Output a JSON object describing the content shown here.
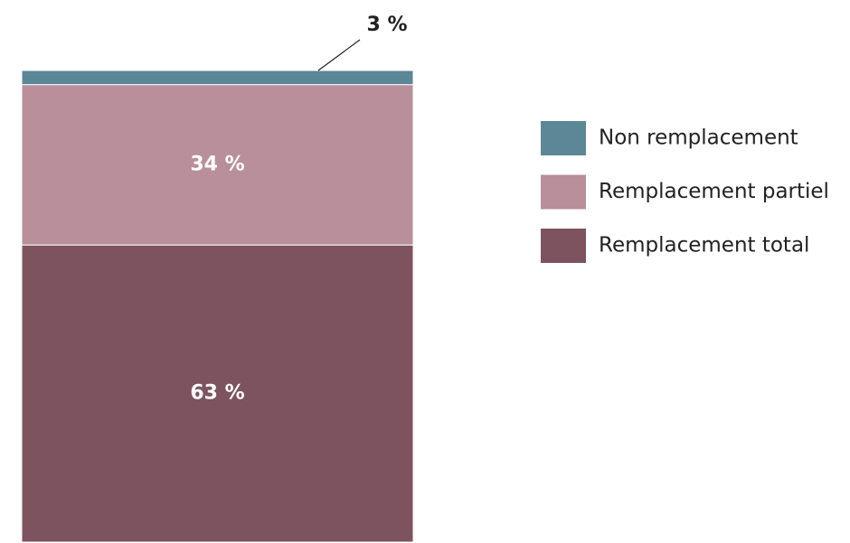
{
  "chart_data": {
    "type": "bar",
    "stacked": true,
    "categories": [
      null
    ],
    "series": [
      {
        "name": "Remplacement total",
        "color": "#7d5360",
        "values": [
          63
        ],
        "value_labels": [
          "63 %"
        ]
      },
      {
        "name": "Remplacement partiel",
        "color": "#b88f9a",
        "values": [
          34
        ],
        "value_labels": [
          "34 %"
        ]
      },
      {
        "name": "Non remplacement",
        "color": "#5b8797",
        "values": [
          3
        ],
        "value_labels": [
          "3 %"
        ]
      }
    ]
  }
}
